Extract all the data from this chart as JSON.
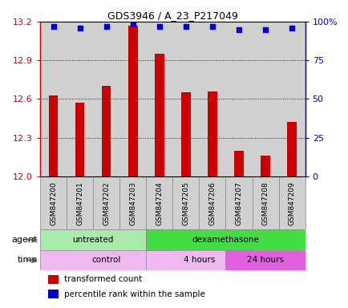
{
  "title": "GDS3946 / A_23_P217049",
  "samples": [
    "GSM847200",
    "GSM847201",
    "GSM847202",
    "GSM847203",
    "GSM847204",
    "GSM847205",
    "GSM847206",
    "GSM847207",
    "GSM847208",
    "GSM847209"
  ],
  "bar_values": [
    12.63,
    12.57,
    12.7,
    13.17,
    12.95,
    12.65,
    12.66,
    12.2,
    12.16,
    12.42
  ],
  "percentile_values": [
    97,
    96,
    97,
    99,
    97,
    97,
    97,
    95,
    95,
    96
  ],
  "ymin": 12.0,
  "ymax": 13.2,
  "bar_color": "#cc0000",
  "percentile_color": "#0000cc",
  "yticks_left": [
    12.0,
    12.3,
    12.6,
    12.9,
    13.2
  ],
  "yticks_right": [
    0,
    25,
    50,
    75,
    100
  ],
  "agent_labels": [
    {
      "text": "untreated",
      "start": 0,
      "end": 3,
      "color": "#aaeaaa"
    },
    {
      "text": "dexamethasone",
      "start": 4,
      "end": 9,
      "color": "#44dd44"
    }
  ],
  "time_labels": [
    {
      "text": "control",
      "start": 0,
      "end": 4,
      "color": "#f0b8f0"
    },
    {
      "text": "4 hours",
      "start": 4,
      "end": 7,
      "color": "#f0b8f0"
    },
    {
      "text": "24 hours",
      "start": 7,
      "end": 9,
      "color": "#e060e0"
    }
  ],
  "legend_red": "transformed count",
  "legend_blue": "percentile rank within the sample",
  "agent_row_label": "agent",
  "time_row_label": "time",
  "col_bg": "#d0d0d0",
  "panel_bg": "#ffffff",
  "grid_color": "#000000",
  "border_color": "#888888"
}
